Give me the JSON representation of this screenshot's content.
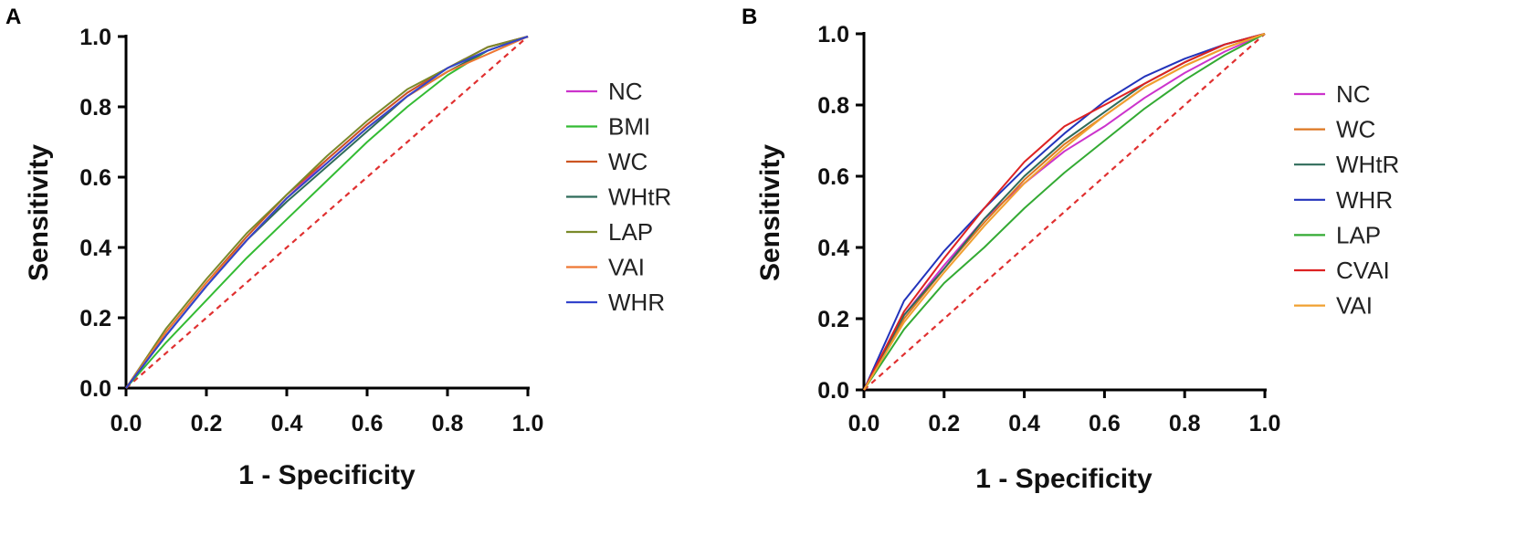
{
  "chart_data": [
    {
      "type": "line",
      "panel_label": "A",
      "xlabel": "1 - Specificity",
      "ylabel": "Sensitivity",
      "xlim": [
        0,
        1
      ],
      "ylim": [
        0,
        1
      ],
      "xticks": [
        "0.0",
        "0.2",
        "0.4",
        "0.6",
        "0.8",
        "1.0"
      ],
      "yticks": [
        "0.0",
        "0.2",
        "0.4",
        "0.6",
        "0.8",
        "1.0"
      ],
      "reference_line": {
        "x": [
          0,
          1
        ],
        "y": [
          0,
          1
        ],
        "color": "#e03030",
        "style": "dashed"
      },
      "series": [
        {
          "name": "NC",
          "color": "#cc33cc",
          "x": [
            0,
            0.1,
            0.2,
            0.3,
            0.4,
            0.5,
            0.6,
            0.7,
            0.8,
            0.9,
            1.0
          ],
          "y": [
            0,
            0.15,
            0.29,
            0.42,
            0.54,
            0.65,
            0.75,
            0.84,
            0.91,
            0.97,
            1.0
          ]
        },
        {
          "name": "BMI",
          "color": "#33bb33",
          "x": [
            0,
            0.1,
            0.2,
            0.3,
            0.4,
            0.5,
            0.6,
            0.7,
            0.8,
            0.9,
            1.0
          ],
          "y": [
            0,
            0.13,
            0.25,
            0.37,
            0.48,
            0.59,
            0.7,
            0.8,
            0.89,
            0.96,
            1.0
          ]
        },
        {
          "name": "WC",
          "color": "#cc5522",
          "x": [
            0,
            0.1,
            0.2,
            0.3,
            0.4,
            0.5,
            0.6,
            0.7,
            0.8,
            0.9,
            1.0
          ],
          "y": [
            0,
            0.16,
            0.3,
            0.43,
            0.55,
            0.65,
            0.75,
            0.84,
            0.91,
            0.97,
            1.0
          ]
        },
        {
          "name": "WHtR",
          "color": "#2f6b5a",
          "x": [
            0,
            0.1,
            0.2,
            0.3,
            0.4,
            0.5,
            0.6,
            0.7,
            0.8,
            0.9,
            1.0
          ],
          "y": [
            0,
            0.15,
            0.29,
            0.42,
            0.53,
            0.63,
            0.73,
            0.83,
            0.9,
            0.96,
            1.0
          ]
        },
        {
          "name": "LAP",
          "color": "#7a8a2a",
          "x": [
            0,
            0.1,
            0.2,
            0.3,
            0.4,
            0.5,
            0.6,
            0.7,
            0.8,
            0.9,
            1.0
          ],
          "y": [
            0,
            0.17,
            0.31,
            0.44,
            0.55,
            0.66,
            0.76,
            0.85,
            0.91,
            0.97,
            1.0
          ]
        },
        {
          "name": "VAI",
          "color": "#ee7733",
          "x": [
            0,
            0.1,
            0.2,
            0.3,
            0.4,
            0.5,
            0.6,
            0.7,
            0.8,
            0.9,
            1.0
          ],
          "y": [
            0,
            0.16,
            0.3,
            0.42,
            0.54,
            0.64,
            0.74,
            0.83,
            0.9,
            0.95,
            1.0
          ]
        },
        {
          "name": "WHR",
          "color": "#3344cc",
          "x": [
            0,
            0.1,
            0.2,
            0.3,
            0.4,
            0.5,
            0.6,
            0.7,
            0.8,
            0.9,
            1.0
          ],
          "y": [
            0,
            0.15,
            0.29,
            0.42,
            0.54,
            0.64,
            0.74,
            0.83,
            0.91,
            0.96,
            1.0
          ]
        }
      ]
    },
    {
      "type": "line",
      "panel_label": "B",
      "xlabel": "1 - Specificity",
      "ylabel": "Sensitivity",
      "xlim": [
        0,
        1
      ],
      "ylim": [
        0,
        1
      ],
      "xticks": [
        "0.0",
        "0.2",
        "0.4",
        "0.6",
        "0.8",
        "1.0"
      ],
      "yticks": [
        "0.0",
        "0.2",
        "0.4",
        "0.6",
        "0.8",
        "1.0"
      ],
      "reference_line": {
        "x": [
          0,
          1
        ],
        "y": [
          0,
          1
        ],
        "color": "#e03030",
        "style": "dashed"
      },
      "series": [
        {
          "name": "NC",
          "color": "#cc33cc",
          "x": [
            0,
            0.1,
            0.2,
            0.3,
            0.4,
            0.5,
            0.6,
            0.7,
            0.8,
            0.9,
            1.0
          ],
          "y": [
            0,
            0.21,
            0.35,
            0.48,
            0.58,
            0.67,
            0.74,
            0.82,
            0.89,
            0.95,
            1.0
          ]
        },
        {
          "name": "WC",
          "color": "#dd7722",
          "x": [
            0,
            0.1,
            0.2,
            0.3,
            0.4,
            0.5,
            0.6,
            0.7,
            0.8,
            0.9,
            1.0
          ],
          "y": [
            0,
            0.2,
            0.34,
            0.47,
            0.59,
            0.69,
            0.77,
            0.85,
            0.91,
            0.96,
            1.0
          ]
        },
        {
          "name": "WHtR",
          "color": "#2f6b5a",
          "x": [
            0,
            0.1,
            0.2,
            0.3,
            0.4,
            0.5,
            0.6,
            0.7,
            0.8,
            0.9,
            1.0
          ],
          "y": [
            0,
            0.21,
            0.34,
            0.48,
            0.6,
            0.7,
            0.78,
            0.86,
            0.92,
            0.97,
            1.0
          ]
        },
        {
          "name": "WHR",
          "color": "#2233bb",
          "x": [
            0,
            0.1,
            0.2,
            0.3,
            0.4,
            0.5,
            0.6,
            0.7,
            0.8,
            0.9,
            1.0
          ],
          "y": [
            0,
            0.25,
            0.39,
            0.51,
            0.62,
            0.72,
            0.81,
            0.88,
            0.93,
            0.97,
            1.0
          ]
        },
        {
          "name": "LAP",
          "color": "#33aa33",
          "x": [
            0,
            0.1,
            0.2,
            0.3,
            0.4,
            0.5,
            0.6,
            0.7,
            0.8,
            0.9,
            1.0
          ],
          "y": [
            0,
            0.17,
            0.3,
            0.4,
            0.51,
            0.61,
            0.7,
            0.79,
            0.87,
            0.94,
            1.0
          ]
        },
        {
          "name": "CVAI",
          "color": "#dd2222",
          "x": [
            0,
            0.1,
            0.2,
            0.3,
            0.4,
            0.5,
            0.6,
            0.7,
            0.8,
            0.9,
            1.0
          ],
          "y": [
            0,
            0.22,
            0.37,
            0.51,
            0.64,
            0.74,
            0.8,
            0.86,
            0.92,
            0.97,
            1.0
          ]
        },
        {
          "name": "VAI",
          "color": "#f0a030",
          "x": [
            0,
            0.1,
            0.2,
            0.3,
            0.4,
            0.5,
            0.6,
            0.7,
            0.8,
            0.9,
            1.0
          ],
          "y": [
            0,
            0.19,
            0.33,
            0.46,
            0.58,
            0.68,
            0.77,
            0.85,
            0.91,
            0.96,
            1.0
          ]
        }
      ]
    }
  ]
}
